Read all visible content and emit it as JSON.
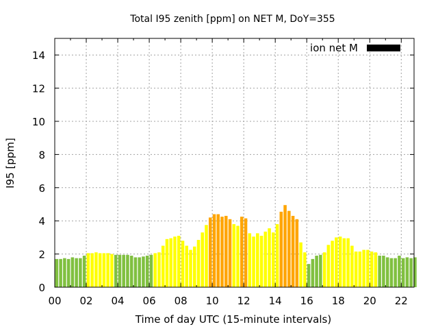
{
  "chart_data": {
    "type": "bar",
    "title": "Total I95 zenith [ppm] on NET M, DoY=355",
    "xlabel": "Time of day UTC (15-minute intervals)",
    "ylabel": "I95 [ppm]",
    "ylim": [
      0,
      15
    ],
    "xlim_hours": [
      0,
      23
    ],
    "yticks": [
      "0",
      "2",
      "4",
      "6",
      "8",
      "10",
      "12",
      "14"
    ],
    "ytick_values": [
      0,
      2,
      4,
      6,
      8,
      10,
      12,
      14
    ],
    "xticks": [
      "00",
      "02",
      "04",
      "06",
      "08",
      "10",
      "12",
      "14",
      "16",
      "18",
      "20",
      "22"
    ],
    "xtick_values": [
      0,
      2,
      4,
      6,
      8,
      10,
      12,
      14,
      16,
      18,
      20,
      22
    ],
    "grid": true,
    "legend": {
      "label": "ion net M",
      "color": "#000000",
      "placement": "top-right"
    },
    "interval_minutes": 15,
    "color_thresholds": [
      {
        "max": 2,
        "color": "#80c040",
        "name": "low"
      },
      {
        "max": 4,
        "color": "#ffff00",
        "name": "moderate"
      },
      {
        "max": 999,
        "color": "#ffa500",
        "name": "elevated"
      }
    ],
    "values": [
      1.7,
      1.7,
      1.75,
      1.7,
      1.8,
      1.75,
      1.75,
      1.9,
      2.05,
      2.05,
      2.1,
      2.05,
      2.05,
      2.05,
      2.0,
      1.95,
      1.95,
      1.95,
      1.95,
      1.9,
      1.8,
      1.8,
      1.85,
      1.9,
      1.95,
      2.05,
      2.1,
      2.5,
      2.9,
      2.95,
      3.05,
      3.1,
      2.8,
      2.5,
      2.25,
      2.45,
      2.85,
      3.3,
      3.75,
      4.2,
      4.4,
      4.4,
      4.25,
      4.3,
      4.1,
      3.8,
      3.7,
      4.25,
      4.15,
      3.25,
      3.05,
      3.25,
      3.1,
      3.35,
      3.55,
      3.3,
      3.8,
      4.55,
      4.95,
      4.6,
      4.3,
      4.1,
      2.7,
      2.1,
      1.4,
      1.7,
      1.9,
      1.95,
      2.1,
      2.55,
      2.8,
      3.0,
      3.05,
      2.95,
      2.95,
      2.5,
      2.15,
      2.15,
      2.25,
      2.25,
      2.15,
      2.1,
      1.9,
      1.9,
      1.8,
      1.75,
      1.75,
      1.9,
      1.75,
      1.8,
      1.75,
      1.8
    ]
  }
}
